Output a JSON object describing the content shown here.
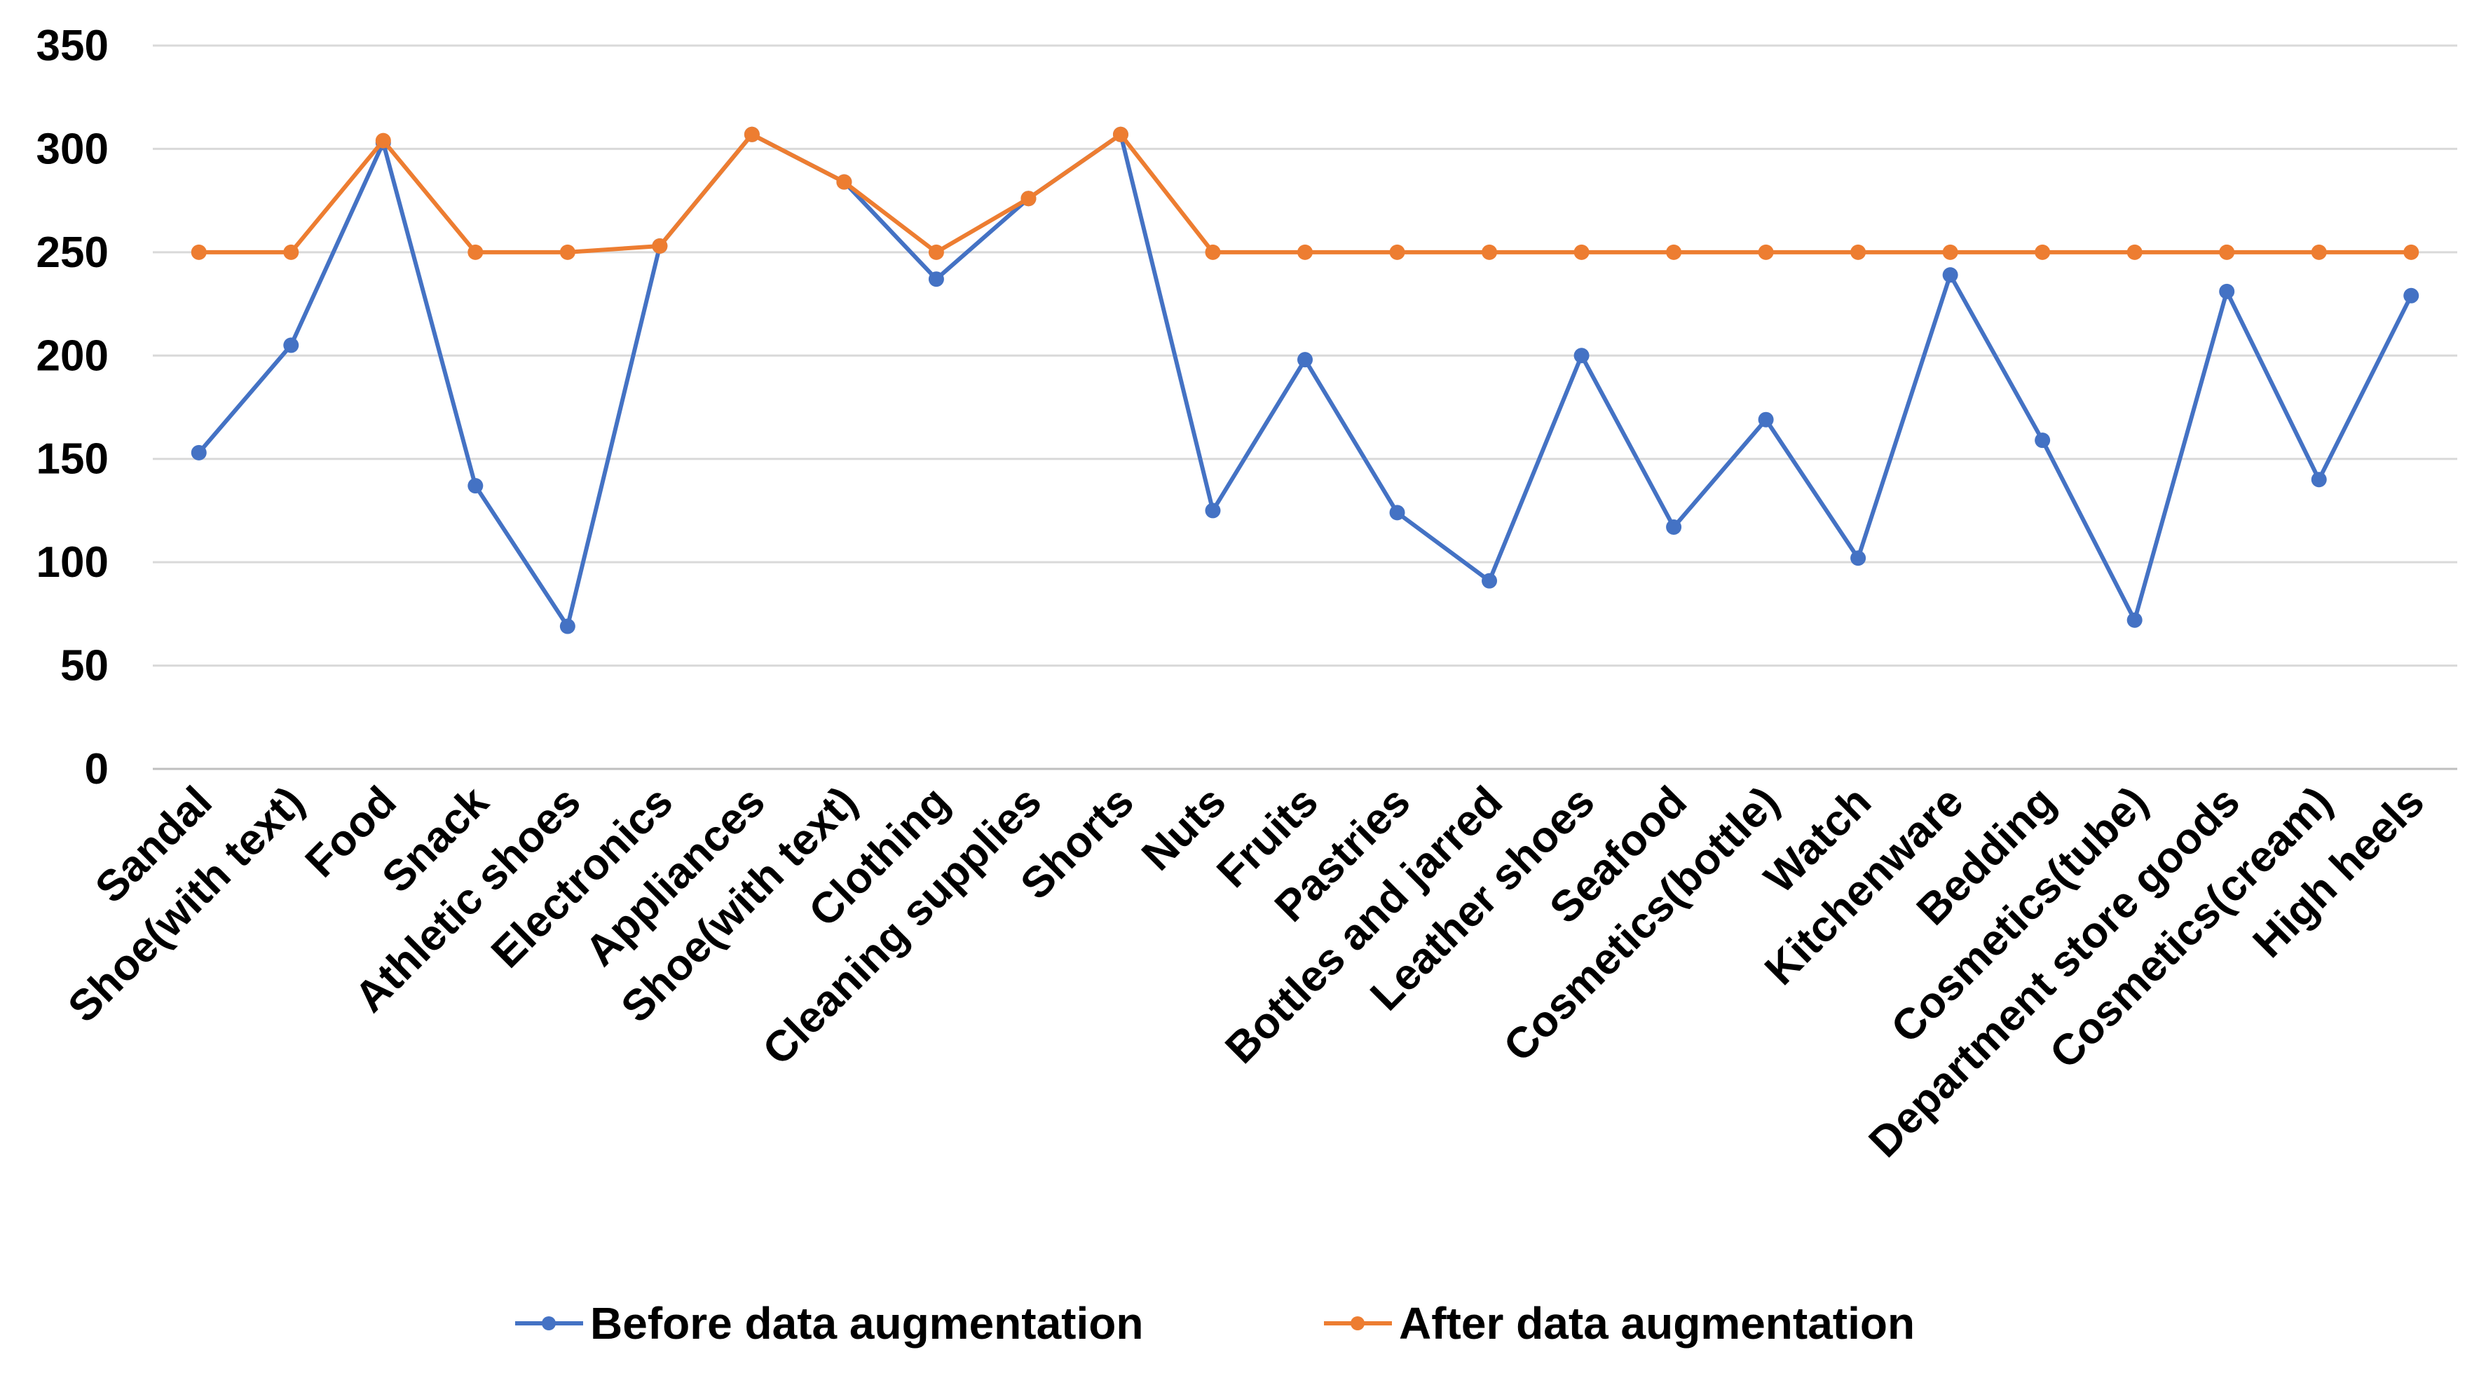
{
  "colors": {
    "before": "#4472C4",
    "after": "#ED7D31",
    "grid": "#d9d9d9"
  },
  "chart_data": {
    "type": "line",
    "categories": [
      "Sandal",
      "Shoe(with text)",
      "Food",
      "Snack",
      "Athletic shoes",
      "Electronics",
      "Appliances",
      "Shoe(with text)",
      "Clothing",
      "Cleaning supplies",
      "Shorts",
      "Nuts",
      "Fruits",
      "Pastries",
      "Bottles and jarred",
      "Leather shoes",
      "Seafood",
      "Cosmetics(bottle)",
      "Watch",
      "Kitchenware",
      "Bedding",
      "Cosmetics(tube)",
      "Department store goods",
      "Cosmetics(cream)",
      "High heels"
    ],
    "series": [
      {
        "name": "Before data augmentation",
        "values": [
          153,
          205,
          303,
          137,
          69,
          253,
          307,
          284,
          237,
          276,
          307,
          125,
          198,
          124,
          91,
          200,
          117,
          169,
          102,
          239,
          159,
          72,
          231,
          140,
          229
        ]
      },
      {
        "name": "After data augmentation",
        "values": [
          250,
          250,
          304,
          250,
          250,
          253,
          307,
          284,
          250,
          276,
          307,
          250,
          250,
          250,
          250,
          250,
          250,
          250,
          250,
          250,
          250,
          250,
          250,
          250,
          250
        ]
      }
    ],
    "yticks": [
      "0",
      "50",
      "100",
      "150",
      "200",
      "250",
      "300",
      "350"
    ],
    "ylim": [
      0,
      350
    ],
    "grid": true,
    "legend": "bottom"
  }
}
